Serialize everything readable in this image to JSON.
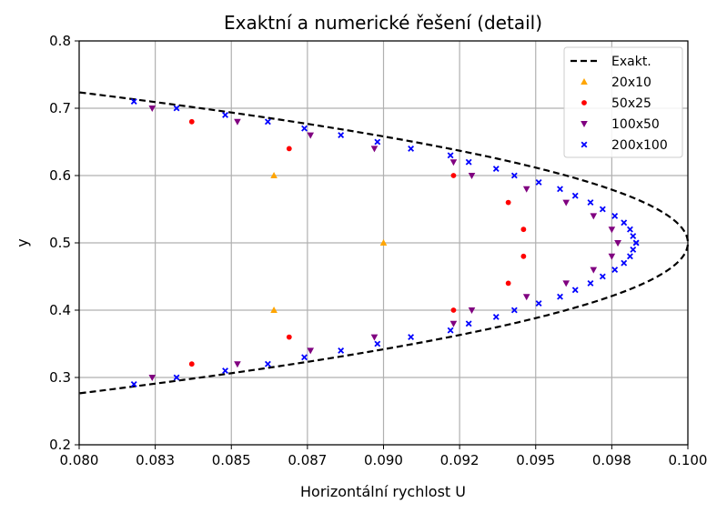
{
  "chart_data": {
    "type": "scatter",
    "title": "Exaktní a numerické řešení (detail)",
    "xlabel": "Horizontální rychlost U",
    "ylabel": "y",
    "xlim": [
      0.08,
      0.1
    ],
    "ylim": [
      0.2,
      0.8
    ],
    "xticks": [
      "0.080",
      "0.083",
      "0.085",
      "0.087",
      "0.090",
      "0.092",
      "0.095",
      "0.098",
      "0.100"
    ],
    "yticks": [
      "0.2",
      "0.3",
      "0.4",
      "0.5",
      "0.6",
      "0.7",
      "0.8"
    ],
    "grid": true,
    "legend_position": "top-right",
    "series": [
      {
        "name": "Exakt.",
        "kind": "line",
        "style": "dashed",
        "color": "#000000",
        "formula": "U = 0.4*y*(1-y)",
        "y_range": [
          0.2765,
          0.7235
        ]
      },
      {
        "name": "20x10",
        "kind": "scatter",
        "marker": "triangle-up",
        "color": "#ffa500",
        "points": [
          [
            0.0864,
            0.4
          ],
          [
            0.0864,
            0.6
          ],
          [
            0.09,
            0.5
          ]
        ]
      },
      {
        "name": "50x25",
        "kind": "scatter",
        "marker": "circle",
        "color": "#ff0000",
        "points": [
          [
            0.0837,
            0.32
          ],
          [
            0.0837,
            0.68
          ],
          [
            0.0869,
            0.36
          ],
          [
            0.0869,
            0.64
          ],
          [
            0.0923,
            0.4
          ],
          [
            0.0923,
            0.6
          ],
          [
            0.0941,
            0.44
          ],
          [
            0.0941,
            0.56
          ],
          [
            0.0946,
            0.48
          ],
          [
            0.0946,
            0.52
          ]
        ]
      },
      {
        "name": "100x50",
        "kind": "scatter",
        "marker": "triangle-down",
        "color": "#800080",
        "points": [
          [
            0.0824,
            0.3
          ],
          [
            0.0824,
            0.7
          ],
          [
            0.0852,
            0.32
          ],
          [
            0.0852,
            0.68
          ],
          [
            0.0876,
            0.34
          ],
          [
            0.0876,
            0.66
          ],
          [
            0.0897,
            0.36
          ],
          [
            0.0897,
            0.64
          ],
          [
            0.0923,
            0.38
          ],
          [
            0.0923,
            0.62
          ],
          [
            0.0929,
            0.4
          ],
          [
            0.0929,
            0.6
          ],
          [
            0.0947,
            0.42
          ],
          [
            0.0947,
            0.58
          ],
          [
            0.096,
            0.44
          ],
          [
            0.096,
            0.56
          ],
          [
            0.0969,
            0.46
          ],
          [
            0.0969,
            0.54
          ],
          [
            0.0975,
            0.48
          ],
          [
            0.0975,
            0.52
          ],
          [
            0.0977,
            0.5
          ],
          [
            0.0977,
            0.5
          ]
        ]
      },
      {
        "name": "200x100",
        "kind": "scatter",
        "marker": "x",
        "color": "#0000ff",
        "points": [
          [
            0.0818,
            0.29
          ],
          [
            0.0818,
            0.71
          ],
          [
            0.0832,
            0.3
          ],
          [
            0.0832,
            0.7
          ],
          [
            0.0848,
            0.31
          ],
          [
            0.0848,
            0.69
          ],
          [
            0.0862,
            0.32
          ],
          [
            0.0862,
            0.68
          ],
          [
            0.0874,
            0.33
          ],
          [
            0.0874,
            0.67
          ],
          [
            0.0886,
            0.34
          ],
          [
            0.0886,
            0.66
          ],
          [
            0.0898,
            0.35
          ],
          [
            0.0898,
            0.65
          ],
          [
            0.0909,
            0.36
          ],
          [
            0.0909,
            0.64
          ],
          [
            0.0922,
            0.37
          ],
          [
            0.0922,
            0.63
          ],
          [
            0.0928,
            0.38
          ],
          [
            0.0928,
            0.62
          ],
          [
            0.0937,
            0.39
          ],
          [
            0.0937,
            0.61
          ],
          [
            0.0943,
            0.4
          ],
          [
            0.0943,
            0.6
          ],
          [
            0.0951,
            0.41
          ],
          [
            0.0951,
            0.59
          ],
          [
            0.0958,
            0.42
          ],
          [
            0.0958,
            0.58
          ],
          [
            0.0963,
            0.43
          ],
          [
            0.0963,
            0.57
          ],
          [
            0.0968,
            0.44
          ],
          [
            0.0968,
            0.56
          ],
          [
            0.0972,
            0.45
          ],
          [
            0.0972,
            0.55
          ],
          [
            0.0976,
            0.46
          ],
          [
            0.0976,
            0.54
          ],
          [
            0.0979,
            0.47
          ],
          [
            0.0979,
            0.53
          ],
          [
            0.0981,
            0.48
          ],
          [
            0.0981,
            0.52
          ],
          [
            0.0982,
            0.49
          ],
          [
            0.0982,
            0.51
          ],
          [
            0.0983,
            0.5
          ],
          [
            0.0983,
            0.5
          ]
        ]
      }
    ]
  }
}
